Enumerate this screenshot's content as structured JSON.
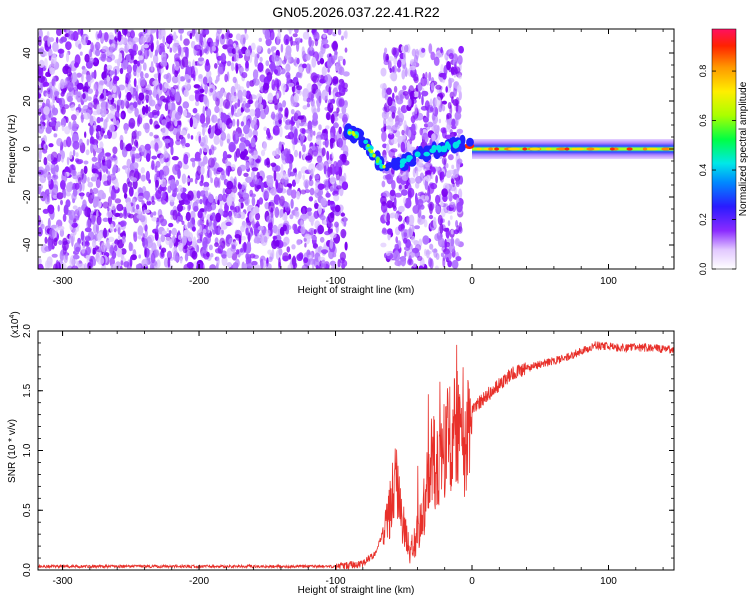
{
  "figure_title": "GN05.2026.037.22.41.R22",
  "chart_data": [
    {
      "type": "heatmap",
      "xlabel": "Height of straight line (km)",
      "ylabel": "Frequency (Hz)",
      "xlim": [
        -318,
        148
      ],
      "ylim": [
        -50,
        50
      ],
      "xticks": [
        -300,
        -200,
        -100,
        0,
        100
      ],
      "xtick_labels": [
        "-300",
        "-200",
        "-100",
        "0",
        "100"
      ],
      "yticks": [
        -40,
        -20,
        0,
        20,
        40
      ],
      "ytick_labels": [
        "-40",
        "-20",
        "0",
        "20",
        "40"
      ],
      "colorbar": {
        "label": "Normalized spectral amplitude",
        "range": [
          0,
          0.97
        ],
        "ticks": [
          0.0,
          0.2,
          0.4,
          0.6,
          0.8
        ],
        "tick_labels": [
          "0.0",
          "0.2",
          "0.4",
          "0.6",
          "0.8"
        ]
      },
      "regions": [
        {
          "kind": "noise",
          "x_range": [
            -318,
            -92
          ],
          "f_range": [
            -50,
            50
          ],
          "amplitude": 0.15
        },
        {
          "kind": "noise",
          "x_range": [
            -65,
            -8
          ],
          "f_range": [
            -50,
            42
          ],
          "amplitude": 0.12
        },
        {
          "kind": "signal",
          "x_range": [
            0,
            148
          ],
          "frequency": 0,
          "amplitude": 0.55,
          "peak_amplitude": 0.9
        }
      ],
      "signal_track": [
        {
          "x": -92,
          "f": 8
        },
        {
          "x": -82,
          "f": 5
        },
        {
          "x": -75,
          "f": 0
        },
        {
          "x": -70,
          "f": -4
        },
        {
          "x": -65,
          "f": -8
        },
        {
          "x": -55,
          "f": -7
        },
        {
          "x": -40,
          "f": -3
        },
        {
          "x": -25,
          "f": 0
        },
        {
          "x": -10,
          "f": 2
        },
        {
          "x": 0,
          "f": 1
        }
      ]
    },
    {
      "type": "line",
      "xlabel": "Height of straight line (km)",
      "ylabel": "SNR (10 * v/v)",
      "y_multiplier": "(x10",
      "y_multiplier_exp": "4",
      "y_multiplier_close": ")",
      "xlim": [
        -318,
        148
      ],
      "ylim": [
        0,
        2.0
      ],
      "xticks": [
        -300,
        -200,
        -100,
        0,
        100
      ],
      "xtick_labels": [
        "-300",
        "-200",
        "-100",
        "0",
        "100"
      ],
      "yticks": [
        0.0,
        0.5,
        1.0,
        1.5,
        2.0
      ],
      "ytick_labels": [
        "0.0",
        "0.5",
        "1.0",
        "1.5",
        "2.0"
      ],
      "color": "#e8302a",
      "x": [
        -318,
        -250,
        -200,
        -150,
        -100,
        -80,
        -70,
        -62,
        -55,
        -50,
        -45,
        -40,
        -35,
        -30,
        -25,
        -20,
        -15,
        -10,
        -5,
        0,
        10,
        20,
        30,
        50,
        70,
        90,
        110,
        130,
        148
      ],
      "values": [
        0.03,
        0.03,
        0.03,
        0.03,
        0.03,
        0.05,
        0.15,
        0.45,
        0.75,
        0.35,
        0.15,
        0.3,
        0.55,
        0.95,
        0.85,
        1.05,
        1.1,
        1.25,
        0.95,
        1.35,
        1.45,
        1.55,
        1.65,
        1.72,
        1.78,
        1.88,
        1.86,
        1.86,
        1.84
      ]
    }
  ]
}
